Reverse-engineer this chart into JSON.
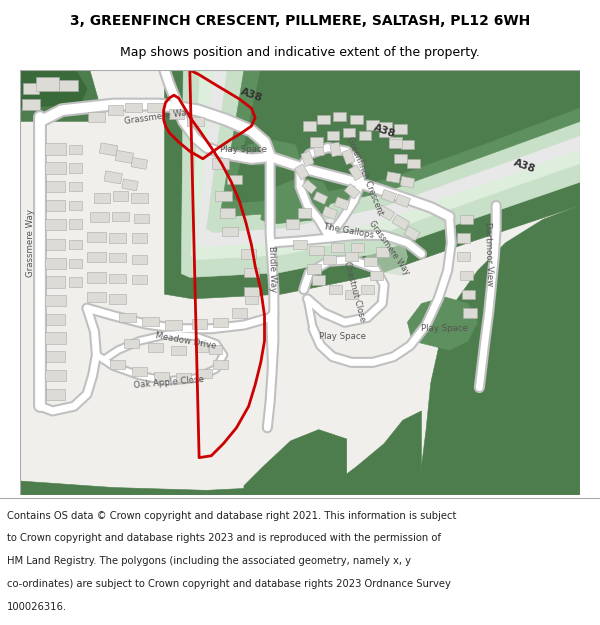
{
  "title_line1": "3, GREENFINCH CRESCENT, PILLMERE, SALTASH, PL12 6WH",
  "title_line2": "Map shows position and indicative extent of the property.",
  "footer_lines": [
    "Contains OS data © Crown copyright and database right 2021. This information is subject",
    "to Crown copyright and database rights 2023 and is reproduced with the permission of",
    "HM Land Registry. The polygons (including the associated geometry, namely x, y",
    "co-ordinates) are subject to Crown copyright and database rights 2023 Ordnance Survey",
    "100026316."
  ],
  "bg_color": "#f0efeb",
  "green_dark": "#4d7d4d",
  "green_mid": "#5e8f5e",
  "green_light": "#c8dfc8",
  "green_pale": "#ddeedd",
  "road_white": "#ffffff",
  "road_edge": "#c0c0c0",
  "building_fill": "#dddbd5",
  "building_edge": "#aaaaaa",
  "red_color": "#cc0000",
  "red_lw": 2.0,
  "title_fontsize": 10,
  "subtitle_fontsize": 9,
  "footer_fontsize": 7.2,
  "label_fs": 6.2,
  "a38_fs": 7.5
}
